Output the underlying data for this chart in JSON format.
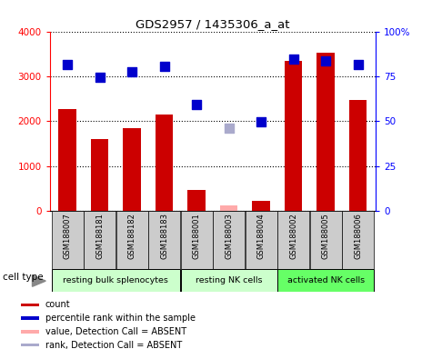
{
  "title": "GDS2957 / 1435306_a_at",
  "samples": [
    "GSM188007",
    "GSM188181",
    "GSM188182",
    "GSM188183",
    "GSM188001",
    "GSM188003",
    "GSM188004",
    "GSM188002",
    "GSM188005",
    "GSM188006"
  ],
  "bar_values": [
    2280,
    1600,
    1840,
    2160,
    480,
    null,
    220,
    3340,
    3520,
    2480
  ],
  "bar_absent": [
    null,
    null,
    null,
    null,
    null,
    120,
    null,
    null,
    null,
    null
  ],
  "percentile_left_values": [
    3260,
    2980,
    3100,
    3220,
    2380,
    null,
    1980,
    3380,
    3340,
    3260
  ],
  "percentile_left_absent": [
    null,
    null,
    null,
    null,
    null,
    1840,
    null,
    null,
    null,
    null
  ],
  "bar_color": "#cc0000",
  "bar_absent_color": "#ffaaaa",
  "dot_color": "#0000cc",
  "dot_absent_color": "#aaaacc",
  "ylim_left": [
    0,
    4000
  ],
  "ylim_right": [
    0,
    100
  ],
  "yticks_left": [
    0,
    1000,
    2000,
    3000,
    4000
  ],
  "ytick_labels_right": [
    "0",
    "25",
    "50",
    "75",
    "100%"
  ],
  "yticks_right": [
    0,
    25,
    50,
    75,
    100
  ],
  "group_spans": [
    {
      "start": 0,
      "end": 3,
      "label": "resting bulk splenocytes",
      "color": "#ccffcc"
    },
    {
      "start": 4,
      "end": 6,
      "label": "resting NK cells",
      "color": "#ccffcc"
    },
    {
      "start": 7,
      "end": 9,
      "label": "activated NK cells",
      "color": "#66ff66"
    }
  ],
  "cell_type_label": "cell type",
  "legend_items": [
    {
      "label": "count",
      "color": "#cc0000"
    },
    {
      "label": "percentile rank within the sample",
      "color": "#0000cc"
    },
    {
      "label": "value, Detection Call = ABSENT",
      "color": "#ffaaaa"
    },
    {
      "label": "rank, Detection Call = ABSENT",
      "color": "#aaaacc"
    }
  ],
  "bar_width": 0.55,
  "dot_size": 55,
  "sample_bg_color": "#cccccc",
  "plot_bg_color": "#ffffff"
}
